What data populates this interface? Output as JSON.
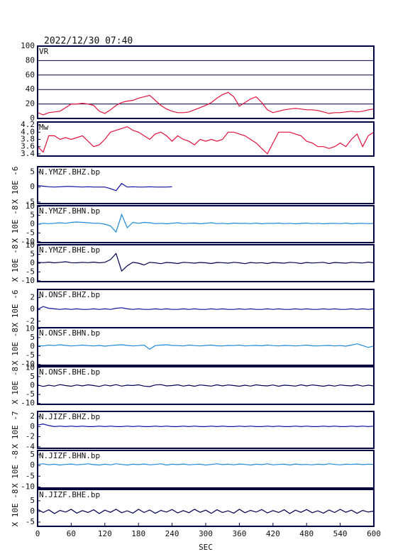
{
  "chart_data": {
    "type": "line",
    "title": "2022/12/30 07:40",
    "xlabel": "SEC",
    "xlim": [
      0,
      600
    ],
    "xticks": [
      0,
      60,
      120,
      180,
      240,
      300,
      360,
      420,
      480,
      540,
      600
    ],
    "x": [
      0,
      10,
      20,
      30,
      40,
      50,
      60,
      70,
      80,
      90,
      100,
      110,
      120,
      130,
      140,
      150,
      160,
      170,
      180,
      190,
      200,
      210,
      220,
      230,
      240,
      250,
      260,
      270,
      280,
      290,
      300,
      310,
      320,
      330,
      340,
      350,
      360,
      370,
      380,
      390,
      400,
      410,
      420,
      430,
      440,
      450,
      460,
      470,
      480,
      490,
      500,
      510,
      520,
      530,
      540,
      550,
      560,
      570,
      580,
      590,
      600
    ],
    "panels": [
      {
        "label": "VR",
        "ylim": [
          0,
          100
        ],
        "yticks": [
          0,
          20,
          40,
          60,
          80,
          100
        ],
        "grid": true,
        "color": "#e0103c",
        "values": [
          8,
          5,
          8,
          9,
          10,
          15,
          20,
          20,
          21,
          20,
          18,
          10,
          7,
          12,
          18,
          22,
          24,
          25,
          28,
          30,
          32,
          25,
          18,
          13,
          10,
          8,
          8,
          9,
          12,
          15,
          18,
          22,
          28,
          33,
          36,
          30,
          17,
          22,
          27,
          30,
          22,
          12,
          8,
          10,
          12,
          13,
          14,
          13,
          12,
          12,
          11,
          9,
          7,
          8,
          8,
          9,
          10,
          9,
          10,
          12,
          13
        ]
      },
      {
        "label": "Mw",
        "ylim": [
          3.34,
          4.28
        ],
        "yticks": [
          3.4,
          3.6,
          3.8,
          {
            "value": 4,
            "label": "4.0"
          },
          4.2
        ],
        "grid": false,
        "color": "#e0103c",
        "values": [
          3.6,
          3.45,
          3.9,
          3.9,
          3.8,
          3.85,
          3.8,
          3.85,
          3.9,
          3.75,
          3.6,
          3.65,
          3.8,
          4.0,
          4.05,
          4.1,
          4.15,
          4.05,
          4.0,
          3.9,
          3.8,
          3.95,
          4.0,
          3.9,
          3.75,
          3.9,
          3.8,
          3.75,
          3.65,
          3.8,
          3.75,
          3.8,
          3.75,
          3.8,
          4.0,
          4.0,
          3.95,
          3.9,
          3.8,
          3.7,
          3.55,
          3.4,
          3.7,
          4.0,
          4.0,
          4.0,
          3.95,
          3.9,
          3.75,
          3.7,
          3.6,
          3.6,
          3.55,
          3.6,
          3.7,
          3.6,
          3.8,
          3.95,
          3.6,
          3.9,
          4.0
        ]
      },
      {
        "label": "N.YMZF.BHZ.bp",
        "ylabel": "X 10E -6",
        "ylim": [
          -5.5,
          6.8
        ],
        "yticks": [
          -5,
          0,
          5
        ],
        "grid": false,
        "color": "#1010a0",
        "values": [
          0.5,
          0.3,
          0.1,
          0,
          0.1,
          0.2,
          0.2,
          0.1,
          0,
          0.1,
          0,
          0,
          0,
          -0.5,
          -1.2,
          1.2,
          0,
          0.1,
          0,
          0,
          0.1,
          0,
          0,
          0,
          0.1,
          null,
          null,
          null,
          null,
          null,
          null,
          null,
          null,
          null,
          null,
          null,
          null,
          null,
          null,
          null,
          null,
          null,
          null,
          null,
          null,
          null,
          null,
          null,
          null,
          null,
          null,
          null,
          null,
          null,
          null,
          null,
          null,
          null,
          null,
          null,
          null
        ]
      },
      {
        "label": "N.YMZF.BHN.bp",
        "ylabel": "X 10E -8",
        "ylim": [
          -10.5,
          10.5
        ],
        "yticks": [
          -10,
          -5,
          0,
          5,
          10
        ],
        "grid": false,
        "color": "#1e88d8",
        "values": [
          0,
          0.5,
          0.3,
          0.5,
          0.8,
          0.5,
          1,
          1.2,
          1,
          0.8,
          0.5,
          0.5,
          0,
          -1,
          -4.5,
          5.5,
          -2,
          1,
          0.5,
          1,
          0.8,
          0.3,
          0.5,
          0.2,
          0.5,
          0.8,
          0.3,
          0.5,
          0.6,
          0.2,
          0.5,
          0.8,
          0.3,
          0.5,
          0.2,
          0.6,
          0.4,
          0.5,
          0.3,
          0.6,
          0.2,
          0.5,
          0.4,
          0.6,
          0.3,
          0.5,
          0.2,
          0.4,
          0.6,
          0.3,
          0.5,
          0.2,
          0.4,
          0.5,
          0.3,
          0.6,
          0.2,
          0.4,
          0.5,
          0.3,
          0.4
        ]
      },
      {
        "label": "N.YMZF.BHE.bp",
        "ylabel": "X 10E -8",
        "ylim": [
          -10.5,
          10.5
        ],
        "yticks": [
          -10,
          -5,
          0,
          5,
          10
        ],
        "grid": false,
        "color": "#000050",
        "values": [
          0.5,
          0.3,
          0.6,
          0.2,
          0.5,
          0.8,
          0.3,
          0.2,
          0.5,
          0.3,
          0.6,
          0.2,
          0.5,
          2,
          5.5,
          -4.5,
          -1.5,
          0.5,
          0,
          -1,
          0.5,
          0.2,
          -0.3,
          0.4,
          0.2,
          -0.2,
          0.5,
          0.3,
          0,
          0.4,
          0.2,
          -0.2,
          0.4,
          0.3,
          0,
          0.5,
          0.2,
          -0.3,
          0.4,
          0.1,
          0.3,
          -0.2,
          0.4,
          0.2,
          0,
          0.5,
          0.3,
          -0.2,
          0.4,
          0.1,
          0.3,
          0.5,
          -0.2,
          0.4,
          0.2,
          0,
          0.5,
          0.3,
          0.1,
          0.6,
          0.2
        ]
      },
      {
        "label": "N.ONSF.BHZ.bp",
        "ylabel": "X 10E -6",
        "ylim": [
          -3.1,
          3.4
        ],
        "yticks": [
          -2,
          0,
          2
        ],
        "grid": false,
        "color": "#1010a0",
        "values": [
          0,
          0.5,
          0.2,
          0.1,
          0,
          0.1,
          0,
          0.1,
          0,
          0,
          0.1,
          0,
          0.1,
          0,
          0.2,
          0.3,
          0.1,
          0,
          0.1,
          0,
          0,
          0.1,
          0,
          0.1,
          0,
          0,
          0.1,
          0,
          0.1,
          0,
          0,
          0.1,
          0,
          0.1,
          0,
          0,
          0.1,
          0,
          0.1,
          0,
          0,
          0.1,
          0,
          0.1,
          0,
          0,
          0.1,
          0,
          0.1,
          0,
          0,
          0.1,
          0,
          0.1,
          0,
          0,
          0.1,
          0,
          0.1,
          0,
          0.1
        ]
      },
      {
        "label": "N.ONSF.BHN.bp",
        "ylabel": "X 10E -8",
        "ylim": [
          -10.5,
          10.5
        ],
        "yticks": [
          -10,
          -5,
          0,
          5,
          10
        ],
        "grid": false,
        "color": "#1e88d8",
        "values": [
          0.5,
          0.3,
          0.8,
          0.5,
          1,
          0.6,
          0.3,
          0.5,
          0.8,
          0.5,
          0.3,
          0.6,
          0.2,
          0.5,
          0.8,
          1,
          0.6,
          0.3,
          0.5,
          0.8,
          -1.5,
          0.5,
          0.8,
          1,
          0.6,
          0.5,
          0.3,
          0.8,
          0.5,
          0.3,
          0.6,
          0.8,
          0.4,
          0.3,
          0.6,
          0.5,
          0.8,
          0.3,
          0.5,
          0.6,
          0.4,
          0.8,
          0.5,
          0.3,
          0.6,
          0.5,
          0.3,
          0.5,
          0.8,
          0.4,
          0.3,
          0.5,
          0.6,
          0.3,
          0.5,
          0.2,
          0.8,
          1.5,
          0.5,
          -0.5,
          0.3
        ]
      },
      {
        "label": "N.ONSF.BHE.bp",
        "ylabel": "X 10E -8",
        "ylim": [
          -10.5,
          10.5
        ],
        "yticks": [
          -10,
          -5,
          0,
          5,
          10
        ],
        "grid": false,
        "color": "#000050",
        "values": [
          0.3,
          -0.5,
          0.2,
          -0.3,
          0.5,
          0,
          -0.4,
          0.3,
          -0.2,
          0.4,
          0,
          -0.5,
          0.3,
          -0.2,
          0.5,
          -0.3,
          0.2,
          0,
          0.4,
          -0.3,
          -0.6,
          0.3,
          0.5,
          -0.2,
          0,
          0.4,
          -0.3,
          0.2,
          -0.4,
          0.3,
          0,
          -0.3,
          0.4,
          -0.2,
          0.3,
          0,
          -0.4,
          0.2,
          -0.3,
          0.4,
          0,
          -0.2,
          0.3,
          -0.4,
          0.2,
          0,
          -0.3,
          0.4,
          -0.2,
          0.3,
          0,
          -0.4,
          0.2,
          -0.3,
          0.3,
          0,
          -0.2,
          0.4,
          -0.3,
          0.2,
          -0.2
        ]
      },
      {
        "label": "N.JIZF.BHZ.bp",
        "ylabel": "X 10E -7",
        "ylim": [
          -4.3,
          3
        ],
        "yticks": [
          -4,
          -2,
          0,
          2
        ],
        "grid": false,
        "color": "#1010a0",
        "values": [
          0.3,
          0.5,
          0.2,
          0,
          0.1,
          0,
          0.1,
          0,
          0.1,
          0,
          0,
          0.1,
          0,
          0.1,
          0,
          0,
          0.1,
          0,
          0.1,
          0,
          0,
          0.1,
          0,
          0.1,
          0,
          0,
          0.1,
          0,
          0.1,
          0,
          0,
          0.1,
          0,
          0.1,
          0,
          0,
          0.1,
          0,
          0.1,
          0,
          0,
          0.1,
          0,
          0.1,
          0,
          0,
          0.1,
          0,
          0.1,
          0,
          0,
          0.1,
          0,
          0.1,
          0,
          0,
          0.1,
          0,
          0.1,
          0,
          0.1
        ]
      },
      {
        "label": "N.JIZF.BHN.bp",
        "ylabel": "X 10E -8",
        "ylim": [
          -10.5,
          7
        ],
        "yticks": [
          -10,
          -5,
          0,
          5
        ],
        "grid": false,
        "color": "#1e88d8",
        "values": [
          0.5,
          0.8,
          0.3,
          0.6,
          0.2,
          0.5,
          0.7,
          0.3,
          0.5,
          0.8,
          0.4,
          0.2,
          0.6,
          0.3,
          0.8,
          0.5,
          0.2,
          0.6,
          0.4,
          0.7,
          0.3,
          0.5,
          0.8,
          0.2,
          0.6,
          0.4,
          0.7,
          0.3,
          0.5,
          0.6,
          0.2,
          0.5,
          0.8,
          0.4,
          0.6,
          0.3,
          0.7,
          0.5,
          0.2,
          0.6,
          0.4,
          0.8,
          0.3,
          0.5,
          0.6,
          0.2,
          0.7,
          0.4,
          0.5,
          0.3,
          0.6,
          0.4,
          0.8,
          0.5,
          0.3,
          0.6,
          0.5,
          0.7,
          0.4,
          0.6,
          0.5
        ]
      },
      {
        "label": "N.JIZF.BHE.bp",
        "ylabel": "X 10E -8",
        "ylim": [
          -7,
          10.3
        ],
        "yticks": [
          -5,
          0,
          5
        ],
        "grid": false,
        "color": "#000050",
        "values": [
          1,
          -0.5,
          0.8,
          -1,
          0.5,
          -0.3,
          1,
          -0.8,
          0.4,
          -0.5,
          0.8,
          -1,
          0.6,
          -0.4,
          1,
          -0.6,
          0.3,
          -0.8,
          1,
          -0.5,
          0.7,
          -0.9,
          0.5,
          -0.3,
          0.9,
          -0.7,
          0.4,
          -0.6,
          1,
          -0.4,
          0.6,
          -0.9,
          0.8,
          -0.5,
          0.3,
          -0.8,
          1,
          -0.6,
          0.5,
          -0.3,
          0.9,
          -0.7,
          0.4,
          -0.5,
          0.8,
          -1,
          0.6,
          -0.4,
          0.9,
          -0.6,
          0.3,
          -0.8,
          0.7,
          -0.5,
          1,
          -0.4,
          0.6,
          -0.9,
          0.5,
          -0.3,
          0.2
        ]
      }
    ]
  }
}
